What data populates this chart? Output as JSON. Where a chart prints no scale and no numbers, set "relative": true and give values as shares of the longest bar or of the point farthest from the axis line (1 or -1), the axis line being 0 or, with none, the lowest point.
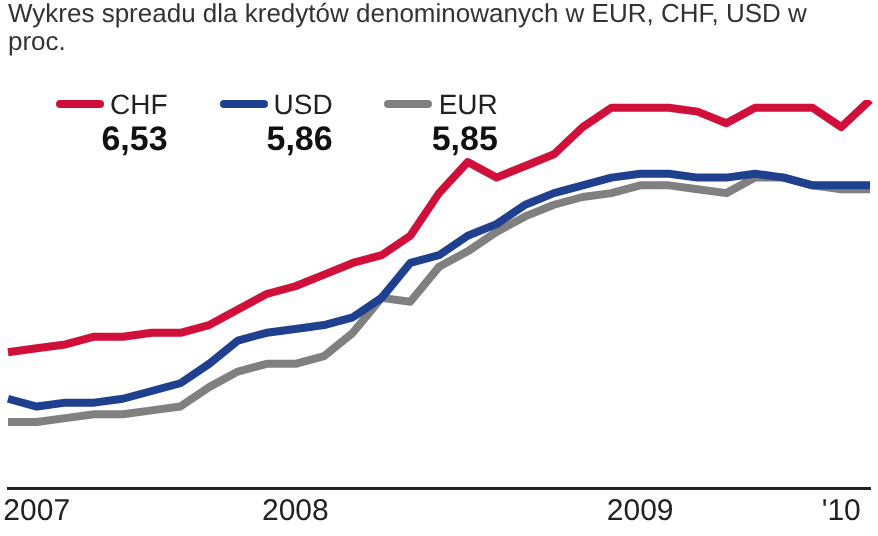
{
  "chart_data": {
    "type": "line",
    "title": "Wykres spreadu dla kredytów denominowanych w EUR, CHF, USD w proc.",
    "relative": true,
    "legend": "top left",
    "marker": "none",
    "categories": [
      null,
      "2007",
      null,
      null,
      null,
      null,
      null,
      null,
      null,
      null,
      "2008",
      null,
      null,
      null,
      null,
      null,
      null,
      null,
      null,
      null,
      null,
      null,
      "2009",
      null,
      null,
      null,
      null,
      null,
      null,
      "'10",
      null
    ],
    "annotations": [
      "6,53",
      "5,86",
      "5,85"
    ],
    "series": [
      {
        "name": "CHF",
        "color": "#d0103a",
        "values": [
          0.35,
          0.36,
          0.37,
          0.39,
          0.39,
          0.4,
          0.4,
          0.42,
          0.46,
          0.5,
          0.52,
          0.55,
          0.58,
          0.6,
          0.65,
          0.76,
          0.84,
          0.8,
          0.83,
          0.86,
          0.93,
          0.98,
          0.98,
          0.98,
          0.97,
          0.94,
          0.98,
          0.98,
          0.98,
          0.93,
          1
        ]
      },
      {
        "name": "USD",
        "color": "#1f3f8f",
        "values": [
          0.23,
          0.21,
          0.22,
          0.22,
          0.23,
          0.25,
          0.27,
          0.32,
          0.38,
          0.4,
          0.41,
          0.42,
          0.44,
          0.49,
          0.58,
          0.6,
          0.65,
          0.68,
          0.73,
          0.76,
          0.78,
          0.8,
          0.81,
          0.81,
          0.8,
          0.8,
          0.81,
          0.8,
          0.78,
          0.78,
          0.78
        ]
      },
      {
        "name": "EUR",
        "color": "#808080",
        "values": [
          0.17,
          0.17,
          0.18,
          0.19,
          0.19,
          0.2,
          0.21,
          0.26,
          0.3,
          0.32,
          0.32,
          0.34,
          0.4,
          0.49,
          0.48,
          0.57,
          0.61,
          0.66,
          0.7,
          0.73,
          0.75,
          0.76,
          0.78,
          0.78,
          0.77,
          0.76,
          0.8,
          0.8,
          0.78,
          0.77,
          0.77
        ]
      }
    ]
  }
}
